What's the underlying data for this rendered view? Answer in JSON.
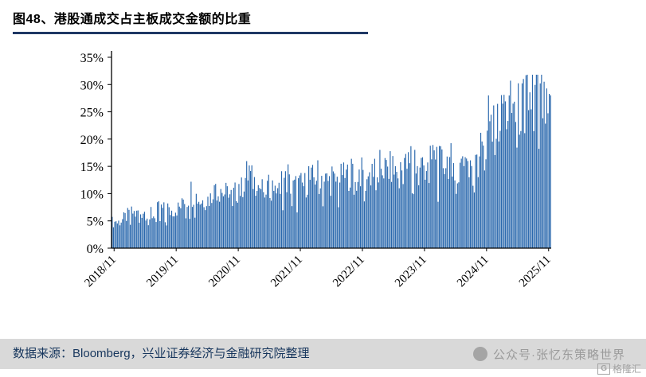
{
  "header": {
    "title": "图48、港股通成交占主板成交金额的比重"
  },
  "footer": {
    "source_label": "数据来源：",
    "source_text": "Bloomberg，兴业证券经济与金融研究院整理",
    "wechat_credit": "公众号·张忆东策略世界",
    "watermark_logo": "G",
    "watermark_name": "格隆汇"
  },
  "colors": {
    "bar": "#2a68ad",
    "title_underline": "#1f3864",
    "footer_bg": "#d9d9d9",
    "footer_text": "#17365d",
    "credit_gray": "#9b9b9b",
    "axis": "#000000"
  },
  "chart_data": {
    "type": "bar",
    "title": "港股通成交占主板成交金额的比重",
    "xlabel": "",
    "ylabel": "",
    "unit": "percent",
    "ylim": [
      0,
      35
    ],
    "grid": false,
    "legend": "none",
    "ytick_labels": [
      "0%",
      "5%",
      "10%",
      "15%",
      "20%",
      "25%",
      "30%",
      "35%"
    ],
    "xtick_labels": [
      "2018/11",
      "2019/11",
      "2020/11",
      "2021/11",
      "2022/11",
      "2023/11",
      "2024/11",
      "2025/11"
    ],
    "xtick_month_index": [
      0,
      12,
      24,
      36,
      48,
      60,
      72,
      84
    ],
    "series_start": "2018/11",
    "series_freq": "monthly_average_estimate",
    "monthly_avg_pct": [
      4.8,
      4.6,
      5.2,
      6.0,
      6.5,
      6.0,
      6.8,
      6.2,
      6.0,
      7.2,
      7.0,
      6.6,
      7.0,
      7.4,
      8.2,
      9.4,
      9.8,
      8.6,
      8.8,
      9.2,
      10.8,
      10.2,
      10.0,
      9.6,
      10.2,
      10.8,
      13.5,
      12.6,
      11.8,
      10.6,
      11.0,
      11.2,
      12.2,
      12.6,
      12.0,
      11.0,
      11.6,
      11.4,
      12.2,
      12.8,
      13.8,
      12.4,
      12.2,
      12.0,
      12.6,
      13.0,
      13.6,
      14.4,
      13.8,
      13.2,
      13.4,
      14.2,
      15.0,
      14.2,
      14.6,
      14.0,
      14.2,
      15.2,
      15.0,
      15.6,
      15.2,
      15.0,
      16.2,
      15.2,
      15.6,
      16.0,
      15.6,
      16.2,
      16.6,
      16.2,
      17.5,
      20.5,
      21.5,
      21.0,
      21.5,
      23.5,
      24.5,
      25.5,
      24.5,
      25.5,
      26.5,
      27.5,
      28.0,
      26.5,
      24.0
    ],
    "daily_volatility_note": "daily bars fluctuate roughly ±25% around monthly averages; peak daily value ≈ 31.5% (2025), early 2018/11 values ≈ 3–6%"
  }
}
